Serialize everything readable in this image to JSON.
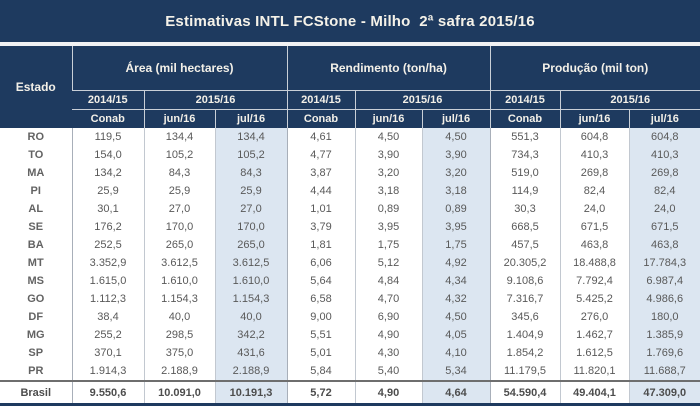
{
  "title": "Estimativas INTL FCStone - Milho  2ª safra 2015/16",
  "colors": {
    "header_navy": "#1e3a5f",
    "header_text": "#f3f0e8",
    "highlight_column": "#dce6f1",
    "body_text": "#595959",
    "grid_line": "#c2c8d0"
  },
  "table": {
    "estado_header": "Estado",
    "groups": [
      {
        "label": "Área (mil hectares)"
      },
      {
        "label": "Rendimento (ton/ha)"
      },
      {
        "label": "Produção (mil ton)"
      }
    ],
    "years": [
      "2014/15",
      "2015/16"
    ],
    "months": [
      "Conab",
      "jun/16",
      "jul/16"
    ],
    "rows": [
      {
        "estado": "RO",
        "area": [
          "119,5",
          "134,4",
          "134,4"
        ],
        "rendimento": [
          "4,61",
          "4,50",
          "4,50"
        ],
        "producao": [
          "551,3",
          "604,8",
          "604,8"
        ]
      },
      {
        "estado": "TO",
        "area": [
          "154,0",
          "105,2",
          "105,2"
        ],
        "rendimento": [
          "4,77",
          "3,90",
          "3,90"
        ],
        "producao": [
          "734,3",
          "410,3",
          "410,3"
        ]
      },
      {
        "estado": "MA",
        "area": [
          "134,2",
          "84,3",
          "84,3"
        ],
        "rendimento": [
          "3,87",
          "3,20",
          "3,20"
        ],
        "producao": [
          "519,0",
          "269,8",
          "269,8"
        ]
      },
      {
        "estado": "PI",
        "area": [
          "25,9",
          "25,9",
          "25,9"
        ],
        "rendimento": [
          "4,44",
          "3,18",
          "3,18"
        ],
        "producao": [
          "114,9",
          "82,4",
          "82,4"
        ]
      },
      {
        "estado": "AL",
        "area": [
          "30,1",
          "27,0",
          "27,0"
        ],
        "rendimento": [
          "1,01",
          "0,89",
          "0,89"
        ],
        "producao": [
          "30,3",
          "24,0",
          "24,0"
        ]
      },
      {
        "estado": "SE",
        "area": [
          "176,2",
          "170,0",
          "170,0"
        ],
        "rendimento": [
          "3,79",
          "3,95",
          "3,95"
        ],
        "producao": [
          "668,5",
          "671,5",
          "671,5"
        ]
      },
      {
        "estado": "BA",
        "area": [
          "252,5",
          "265,0",
          "265,0"
        ],
        "rendimento": [
          "1,81",
          "1,75",
          "1,75"
        ],
        "producao": [
          "457,5",
          "463,8",
          "463,8"
        ]
      },
      {
        "estado": "MT",
        "area": [
          "3.352,9",
          "3.612,5",
          "3.612,5"
        ],
        "rendimento": [
          "6,06",
          "5,12",
          "4,92"
        ],
        "producao": [
          "20.305,2",
          "18.488,8",
          "17.784,3"
        ]
      },
      {
        "estado": "MS",
        "area": [
          "1.615,0",
          "1.610,0",
          "1.610,0"
        ],
        "rendimento": [
          "5,64",
          "4,84",
          "4,34"
        ],
        "producao": [
          "9.108,6",
          "7.792,4",
          "6.987,4"
        ]
      },
      {
        "estado": "GO",
        "area": [
          "1.112,3",
          "1.154,3",
          "1.154,3"
        ],
        "rendimento": [
          "6,58",
          "4,70",
          "4,32"
        ],
        "producao": [
          "7.316,7",
          "5.425,2",
          "4.986,6"
        ]
      },
      {
        "estado": "DF",
        "area": [
          "38,4",
          "40,0",
          "40,0"
        ],
        "rendimento": [
          "9,00",
          "6,90",
          "4,50"
        ],
        "producao": [
          "345,6",
          "276,0",
          "180,0"
        ]
      },
      {
        "estado": "MG",
        "area": [
          "255,2",
          "298,5",
          "342,2"
        ],
        "rendimento": [
          "5,51",
          "4,90",
          "4,05"
        ],
        "producao": [
          "1.404,9",
          "1.462,7",
          "1.385,9"
        ]
      },
      {
        "estado": "SP",
        "area": [
          "370,1",
          "375,0",
          "431,6"
        ],
        "rendimento": [
          "5,01",
          "4,30",
          "4,10"
        ],
        "producao": [
          "1.854,2",
          "1.612,5",
          "1.769,6"
        ]
      },
      {
        "estado": "PR",
        "area": [
          "1.914,3",
          "2.188,9",
          "2.188,9"
        ],
        "rendimento": [
          "5,84",
          "5,40",
          "5,34"
        ],
        "producao": [
          "11.179,5",
          "11.820,1",
          "11.688,7"
        ]
      }
    ],
    "total": {
      "estado": "Brasil",
      "area": [
        "9.550,6",
        "10.091,0",
        "10.191,3"
      ],
      "rendimento": [
        "5,72",
        "4,90",
        "4,64"
      ],
      "producao": [
        "54.590,4",
        "49.404,1",
        "47.309,0"
      ]
    }
  },
  "chart_data": {
    "type": "table",
    "title": "Estimativas INTL FCStone - Milho  2ª safra 2015/16",
    "column_groups": [
      "Área (mil hectares)",
      "Rendimento (ton/ha)",
      "Produção (mil ton)"
    ],
    "columns": [
      "Estado",
      "Área 2014/15 Conab",
      "Área 2015/16 jun/16",
      "Área 2015/16 jul/16",
      "Rendimento 2014/15 Conab",
      "Rendimento 2015/16 jun/16",
      "Rendimento 2015/16 jul/16",
      "Produção 2014/15 Conab",
      "Produção 2015/16 jun/16",
      "Produção 2015/16 jul/16"
    ],
    "highlighted_column": "jul/16",
    "rows": [
      [
        "RO",
        119.5,
        134.4,
        134.4,
        4.61,
        4.5,
        4.5,
        551.3,
        604.8,
        604.8
      ],
      [
        "TO",
        154.0,
        105.2,
        105.2,
        4.77,
        3.9,
        3.9,
        734.3,
        410.3,
        410.3
      ],
      [
        "MA",
        134.2,
        84.3,
        84.3,
        3.87,
        3.2,
        3.2,
        519.0,
        269.8,
        269.8
      ],
      [
        "PI",
        25.9,
        25.9,
        25.9,
        4.44,
        3.18,
        3.18,
        114.9,
        82.4,
        82.4
      ],
      [
        "AL",
        30.1,
        27.0,
        27.0,
        1.01,
        0.89,
        0.89,
        30.3,
        24.0,
        24.0
      ],
      [
        "SE",
        176.2,
        170.0,
        170.0,
        3.79,
        3.95,
        3.95,
        668.5,
        671.5,
        671.5
      ],
      [
        "BA",
        252.5,
        265.0,
        265.0,
        1.81,
        1.75,
        1.75,
        457.5,
        463.8,
        463.8
      ],
      [
        "MT",
        3352.9,
        3612.5,
        3612.5,
        6.06,
        5.12,
        4.92,
        20305.2,
        18488.8,
        17784.3
      ],
      [
        "MS",
        1615.0,
        1610.0,
        1610.0,
        5.64,
        4.84,
        4.34,
        9108.6,
        7792.4,
        6987.4
      ],
      [
        "GO",
        1112.3,
        1154.3,
        1154.3,
        6.58,
        4.7,
        4.32,
        7316.7,
        5425.2,
        4986.6
      ],
      [
        "DF",
        38.4,
        40.0,
        40.0,
        9.0,
        6.9,
        4.5,
        345.6,
        276.0,
        180.0
      ],
      [
        "MG",
        255.2,
        298.5,
        342.2,
        5.51,
        4.9,
        4.05,
        1404.9,
        1462.7,
        1385.9
      ],
      [
        "SP",
        370.1,
        375.0,
        431.6,
        5.01,
        4.3,
        4.1,
        1854.2,
        1612.5,
        1769.6
      ],
      [
        "PR",
        1914.3,
        2188.9,
        2188.9,
        5.84,
        5.4,
        5.34,
        11179.5,
        11820.1,
        11688.7
      ]
    ],
    "total_row": [
      "Brasil",
      9550.6,
      10091.0,
      10191.3,
      5.72,
      4.9,
      4.64,
      54590.4,
      49404.1,
      47309.0
    ]
  }
}
